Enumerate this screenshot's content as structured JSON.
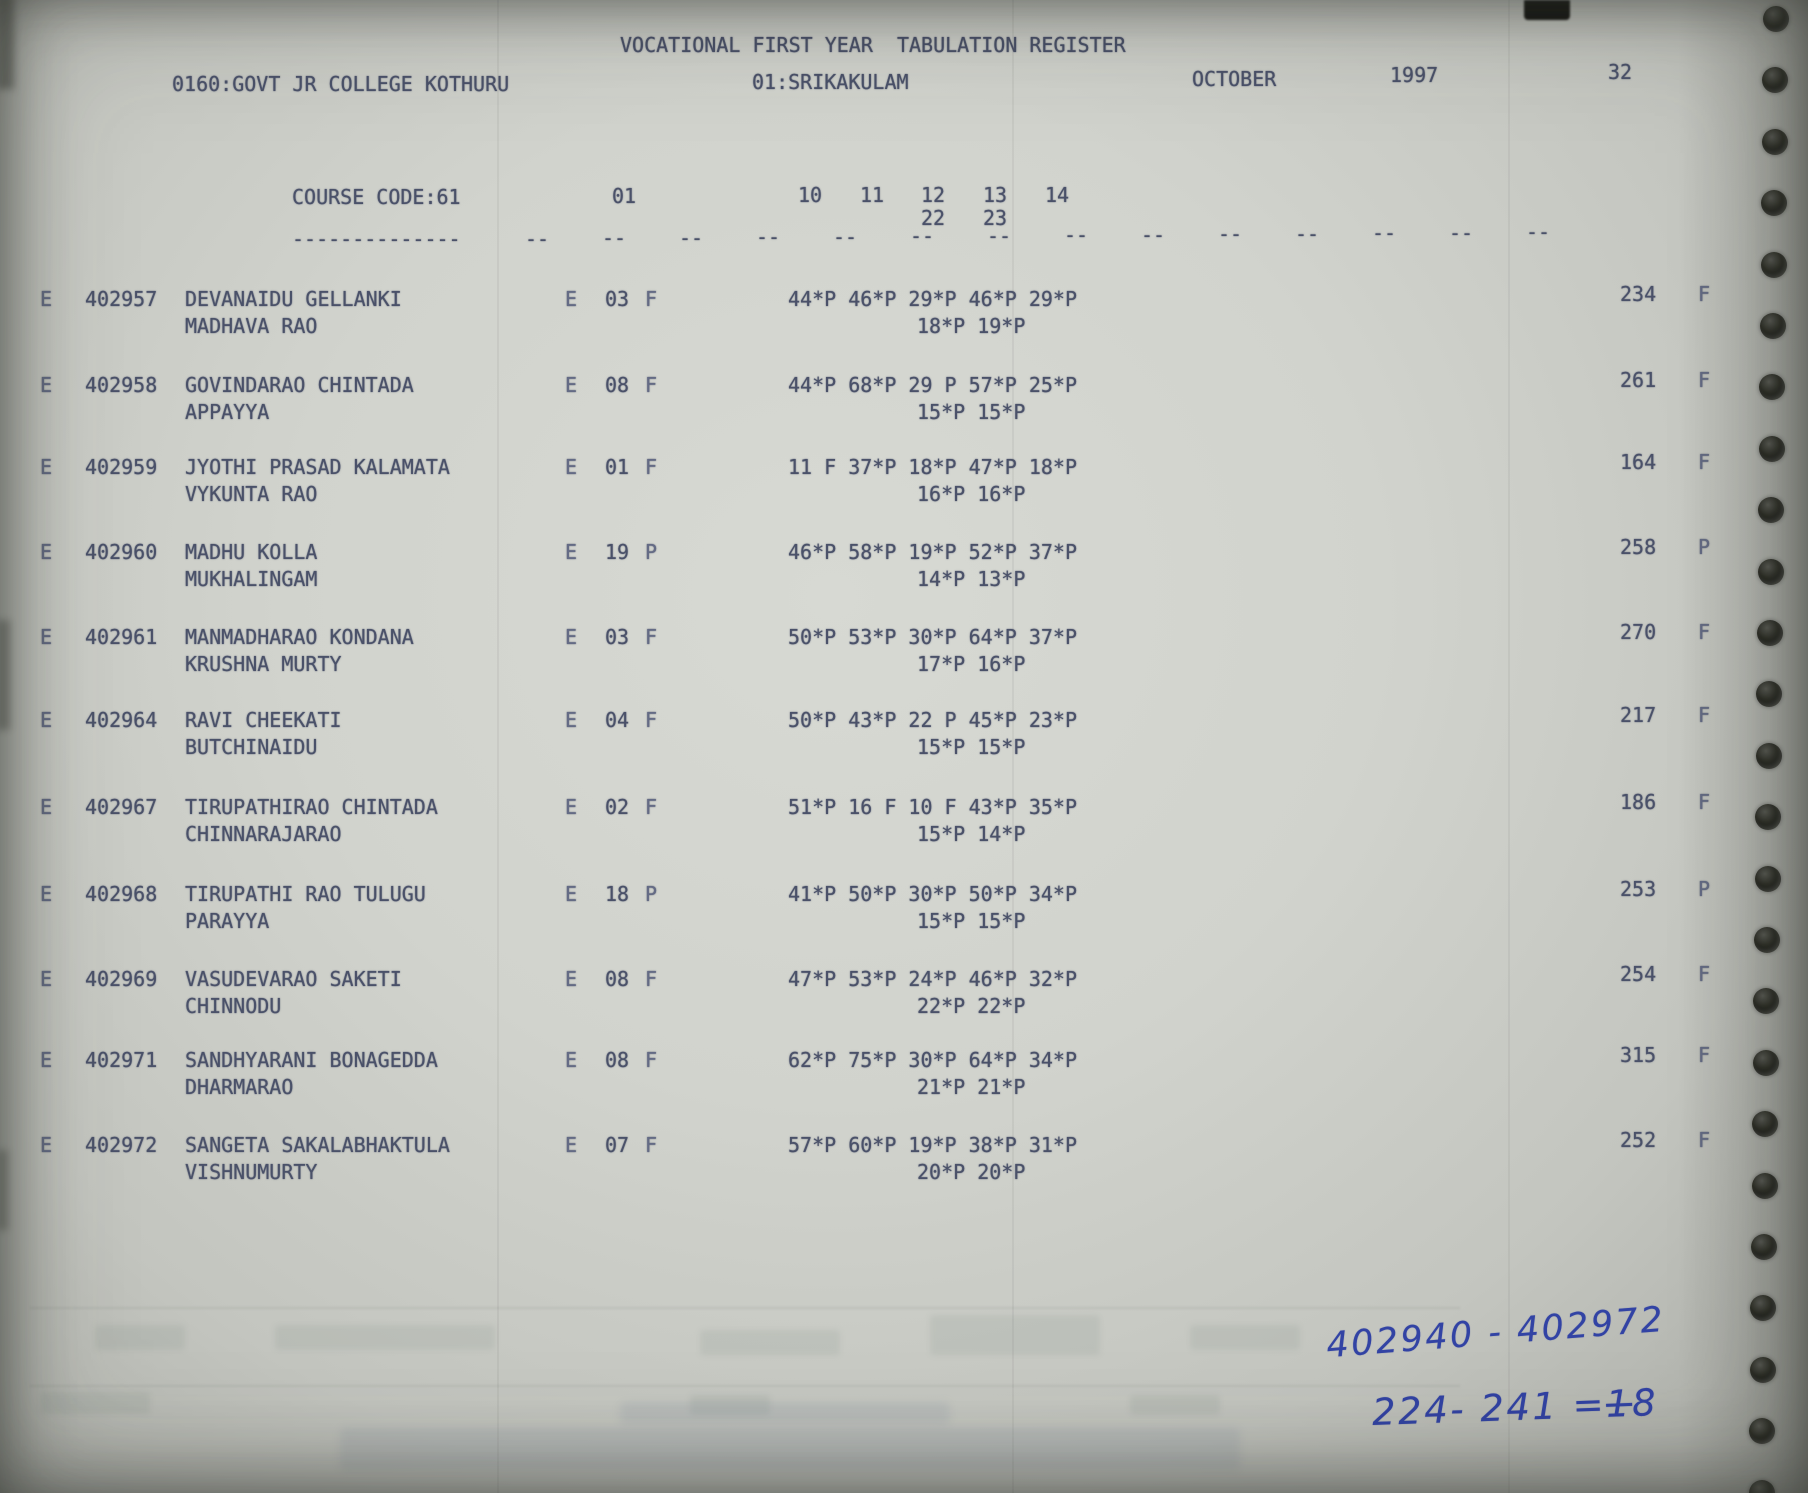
{
  "page": {
    "title": "VOCATIONAL FIRST YEAR  TABULATION REGISTER",
    "college": "0160:GOVT JR COLLEGE KOTHURU",
    "district": "01:SRIKAKULAM",
    "month": "OCTOBER",
    "year": "1997",
    "page_number": "32"
  },
  "table": {
    "course_code_label": "COURSE CODE:61",
    "group_header": "01",
    "subject_headers": [
      "10",
      "11",
      "12",
      "13",
      "14"
    ],
    "subject_headers_row2": [
      "22",
      "23"
    ],
    "underline_long": "--------------",
    "underline_segment": "--",
    "students": [
      {
        "entry_flag": "E",
        "roll_no": "402957",
        "name": "DEVANAIDU GELLANKI",
        "father_name": "MADHAVA RAO",
        "medium_flag": "E",
        "group_code": "03",
        "group_result": "F",
        "marks_row1": "44*P 46*P 29*P 46*P 29*P",
        "marks_row2": "18*P 19*P",
        "total": "234",
        "result": "F"
      },
      {
        "entry_flag": "E",
        "roll_no": "402958",
        "name": "GOVINDARAO CHINTADA",
        "father_name": "APPAYYA",
        "medium_flag": "E",
        "group_code": "08",
        "group_result": "F",
        "marks_row1": "44*P 68*P 29 P 57*P 25*P",
        "marks_row2": "15*P 15*P",
        "total": "261",
        "result": "F"
      },
      {
        "entry_flag": "E",
        "roll_no": "402959",
        "name": "JYOTHI PRASAD KALAMATA",
        "father_name": "VYKUNTA RAO",
        "medium_flag": "E",
        "group_code": "01",
        "group_result": "F",
        "marks_row1": "11 F 37*P 18*P 47*P 18*P",
        "marks_row2": "16*P 16*P",
        "total": "164",
        "result": "F"
      },
      {
        "entry_flag": "E",
        "roll_no": "402960",
        "name": "MADHU KOLLA",
        "father_name": "MUKHALINGAM",
        "medium_flag": "E",
        "group_code": "19",
        "group_result": "P",
        "marks_row1": "46*P 58*P 19*P 52*P 37*P",
        "marks_row2": "14*P 13*P",
        "total": "258",
        "result": "P"
      },
      {
        "entry_flag": "E",
        "roll_no": "402961",
        "name": "MANMADHARAO KONDANA",
        "father_name": "KRUSHNA MURTY",
        "medium_flag": "E",
        "group_code": "03",
        "group_result": "F",
        "marks_row1": "50*P 53*P 30*P 64*P 37*P",
        "marks_row2": "17*P 16*P",
        "total": "270",
        "result": "F"
      },
      {
        "entry_flag": "E",
        "roll_no": "402964",
        "name": "RAVI CHEEKATI",
        "father_name": "BUTCHINAIDU",
        "medium_flag": "E",
        "group_code": "04",
        "group_result": "F",
        "marks_row1": "50*P 43*P 22 P 45*P 23*P",
        "marks_row2": "15*P 15*P",
        "total": "217",
        "result": "F"
      },
      {
        "entry_flag": "E",
        "roll_no": "402967",
        "name": "TIRUPATHIRAO CHINTADA",
        "father_name": "CHINNARAJARAO",
        "medium_flag": "E",
        "group_code": "02",
        "group_result": "F",
        "marks_row1": "51*P 16 F 10 F 43*P 35*P",
        "marks_row2": "15*P 14*P",
        "total": "186",
        "result": "F"
      },
      {
        "entry_flag": "E",
        "roll_no": "402968",
        "name": "TIRUPATHI RAO TULUGU",
        "father_name": "PARAYYA",
        "medium_flag": "E",
        "group_code": "18",
        "group_result": "P",
        "marks_row1": "41*P 50*P 30*P 50*P 34*P",
        "marks_row2": "15*P 15*P",
        "total": "253",
        "result": "P"
      },
      {
        "entry_flag": "E",
        "roll_no": "402969",
        "name": "VASUDEVARAO SAKETI",
        "father_name": "CHINNODU",
        "medium_flag": "E",
        "group_code": "08",
        "group_result": "F",
        "marks_row1": "47*P 53*P 24*P 46*P 32*P",
        "marks_row2": "22*P 22*P",
        "total": "254",
        "result": "F"
      },
      {
        "entry_flag": "E",
        "roll_no": "402971",
        "name": "SANDHYARANI BONAGEDDA",
        "father_name": "DHARMARAO",
        "medium_flag": "E",
        "group_code": "08",
        "group_result": "F",
        "marks_row1": "62*P 75*P 30*P 64*P 34*P",
        "marks_row2": "21*P 21*P",
        "total": "315",
        "result": "F"
      },
      {
        "entry_flag": "E",
        "roll_no": "402972",
        "name": "SANGETA SAKALABHAKTULA",
        "father_name": "VISHNUMURTY",
        "medium_flag": "E",
        "group_code": "07",
        "group_result": "F",
        "marks_row1": "57*P 60*P 19*P 38*P 31*P",
        "marks_row2": "20*P 20*P",
        "total": "252",
        "result": "F"
      }
    ]
  },
  "handwritten_notes": {
    "roll_range": "402940 - 402972",
    "tally_prefix": "224-  241  =",
    "tally_struck_digit": "1",
    "tally_final_digit": "8"
  }
}
